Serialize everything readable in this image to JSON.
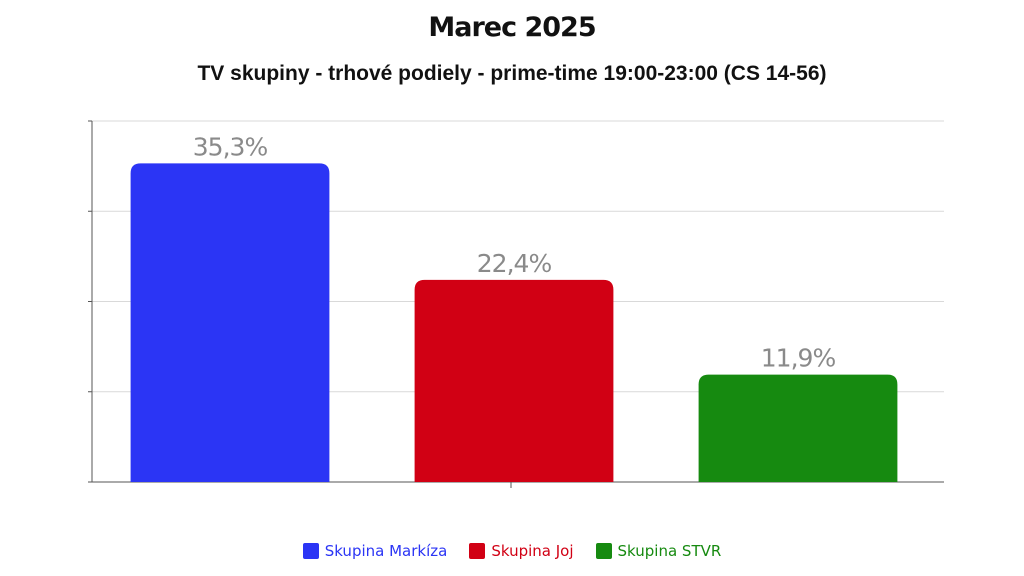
{
  "chart_data": {
    "type": "bar",
    "title": "Marec 2025",
    "subtitle": "TV skupiny - trhové podiely - prime-time 19:00-23:00 (CS 14-56)",
    "categories": [
      "Skupina Markíza",
      "Skupina Joj",
      "Skupina STVR"
    ],
    "values": [
      35.3,
      22.4,
      11.9
    ],
    "data_labels": [
      "35,3%",
      "22,4%",
      "11,9%"
    ],
    "colors": [
      "#2b35f5",
      "#d10014",
      "#168a10"
    ],
    "ylim": [
      0,
      40
    ],
    "grid": true,
    "legend_position": "bottom",
    "xlabel": "",
    "ylabel": ""
  }
}
